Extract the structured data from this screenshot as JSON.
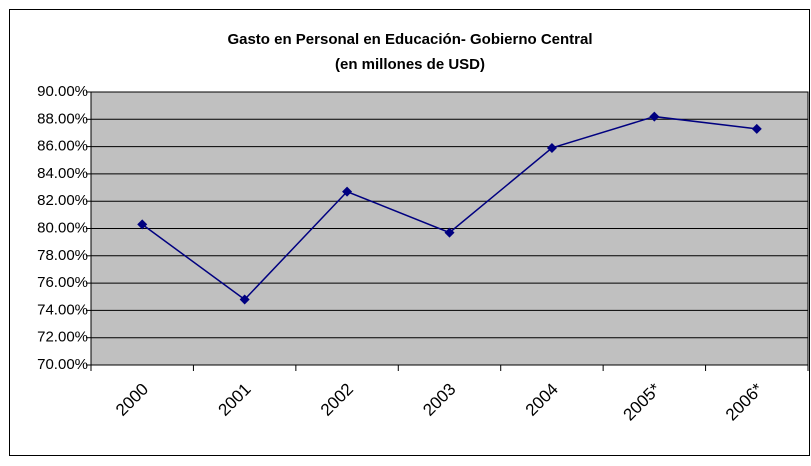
{
  "chart_data": {
    "type": "line",
    "title": "Gasto en Personal en Educación- Gobierno Central",
    "subtitle": "(en millones de USD)",
    "categories": [
      "2000",
      "2001",
      "2002",
      "2003",
      "2004",
      "2005*",
      "2006*"
    ],
    "series": [
      {
        "name": null,
        "color": "#000080",
        "values": [
          80.3,
          74.8,
          82.7,
          79.7,
          85.9,
          88.2,
          87.3
        ]
      }
    ],
    "ylim": [
      70,
      90
    ],
    "yticks": [
      {
        "value": 70,
        "label": "70.00%"
      },
      {
        "value": 72,
        "label": "72.00%"
      },
      {
        "value": 74,
        "label": "74.00%"
      },
      {
        "value": 76,
        "label": "76.00%"
      },
      {
        "value": 78,
        "label": "78.00%"
      },
      {
        "value": 80,
        "label": "80.00%"
      },
      {
        "value": 82,
        "label": "82.00%"
      },
      {
        "value": 84,
        "label": "84.00%"
      },
      {
        "value": 86,
        "label": "86.00%"
      },
      {
        "value": 88,
        "label": "88.00%"
      },
      {
        "value": 90,
        "label": "90.00%"
      }
    ],
    "grid": true,
    "plot_background": "#c0c0c0"
  }
}
